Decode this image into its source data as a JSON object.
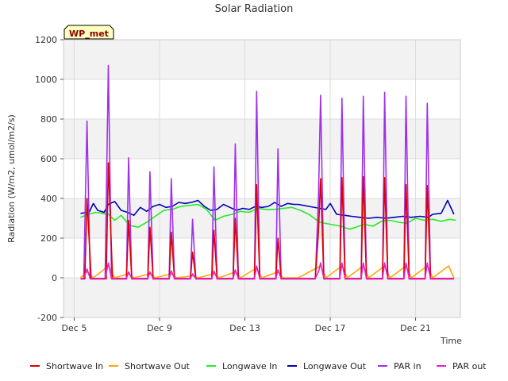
{
  "chart_data": {
    "type": "line",
    "title": "Solar Radiation",
    "xlabel": "Time",
    "ylabel": "Radiation (W/m2, umol/m2/s)",
    "badge": "WP_met",
    "xlim": [
      4.5,
      23.1
    ],
    "ylim": [
      -200,
      1200
    ],
    "yticks": [
      -200,
      0,
      200,
      400,
      600,
      800,
      1000,
      1200
    ],
    "xticks": [
      {
        "value": 5,
        "label": "Dec 5"
      },
      {
        "value": 9,
        "label": "Dec 9"
      },
      {
        "value": 13,
        "label": "Dec 13"
      },
      {
        "value": 17,
        "label": "Dec 17"
      },
      {
        "value": 21,
        "label": "Dec 21"
      }
    ],
    "bands": [
      [
        -200,
        0
      ],
      [
        200,
        400
      ],
      [
        600,
        800
      ],
      [
        1000,
        1200
      ]
    ],
    "colors": {
      "shortwave_in": "#dd0000",
      "shortwave_out": "#ffa500",
      "longwave_in": "#22ee22",
      "longwave_out": "#0000bb",
      "par_in": "#a030e8",
      "par_out": "#e61ed2",
      "band": "#f2f2f2",
      "grid": "#dcdcdc",
      "badge_fill": "#ffffc0"
    },
    "series": [
      {
        "name": "Shortwave In",
        "key": "shortwave_in",
        "x": [
          5.3,
          5.5,
          5.6,
          5.8,
          5.9,
          6.3,
          6.5,
          6.6,
          6.8,
          6.9,
          7.3,
          7.45,
          7.55,
          7.7,
          7.8,
          8.3,
          8.45,
          8.55,
          8.7,
          8.8,
          9.3,
          9.45,
          9.55,
          9.7,
          9.8,
          10.3,
          10.45,
          10.55,
          10.7,
          10.8,
          11.3,
          11.45,
          11.55,
          11.7,
          11.8,
          12.3,
          12.45,
          12.55,
          12.7,
          12.8,
          13.3,
          13.45,
          13.55,
          13.7,
          13.8,
          14.3,
          14.45,
          14.55,
          14.7,
          14.8,
          15.5,
          16.3,
          16.45,
          16.55,
          16.7,
          16.8,
          17.3,
          17.45,
          17.55,
          17.7,
          17.8,
          18.3,
          18.45,
          18.55,
          18.7,
          18.8,
          19.3,
          19.45,
          19.55,
          19.7,
          19.8,
          20.3,
          20.45,
          20.55,
          20.7,
          20.8,
          21.3,
          21.45,
          21.55,
          21.7,
          21.8,
          22.3,
          22.45,
          22.55,
          22.7,
          22.8
        ],
        "y": [
          -5,
          -5,
          400,
          -5,
          -5,
          -5,
          -5,
          580,
          -5,
          -5,
          -5,
          -5,
          290,
          -5,
          -5,
          -5,
          -5,
          255,
          -5,
          -5,
          -5,
          -5,
          230,
          -5,
          -5,
          -5,
          -5,
          130,
          -5,
          -5,
          -5,
          -5,
          240,
          -5,
          -5,
          -5,
          -5,
          300,
          -5,
          -5,
          -5,
          -5,
          470,
          -5,
          -5,
          -5,
          -5,
          200,
          -5,
          -5,
          -5,
          -5,
          230,
          500,
          -5,
          -5,
          -5,
          -5,
          505,
          -5,
          -5,
          -5,
          -5,
          510,
          -5,
          -5,
          -5,
          -5,
          505,
          -5,
          -5,
          -5,
          -5,
          470,
          -5,
          -5,
          -5,
          -5,
          465,
          -5,
          -5,
          -5,
          -5,
          -5,
          -5,
          -5
        ]
      },
      {
        "name": "Shortwave Out",
        "key": "shortwave_out",
        "x": [
          5.3,
          5.6,
          5.9,
          6.6,
          6.9,
          7.55,
          7.8,
          8.55,
          8.8,
          9.55,
          9.8,
          10.55,
          10.8,
          11.55,
          11.8,
          12.55,
          12.8,
          13.55,
          13.8,
          14.55,
          14.8,
          15.5,
          16.55,
          16.8,
          17.55,
          17.8,
          18.55,
          18.8,
          19.55,
          19.8,
          20.55,
          20.8,
          21.55,
          21.8,
          22.55,
          22.8
        ],
        "y": [
          0,
          30,
          0,
          60,
          0,
          20,
          0,
          20,
          0,
          20,
          0,
          10,
          0,
          20,
          0,
          30,
          0,
          50,
          0,
          30,
          0,
          0,
          60,
          0,
          60,
          0,
          60,
          0,
          60,
          0,
          60,
          0,
          60,
          0,
          60,
          0
        ]
      },
      {
        "name": "Longwave In",
        "key": "longwave_in",
        "x": [
          5.3,
          5.7,
          6.0,
          6.3,
          6.6,
          6.9,
          7.2,
          7.6,
          8.0,
          8.4,
          8.8,
          9.2,
          9.6,
          10.0,
          10.4,
          10.8,
          11.2,
          11.6,
          12.0,
          12.4,
          12.8,
          13.2,
          13.6,
          14.0,
          14.4,
          14.8,
          15.2,
          15.6,
          16.0,
          16.5,
          17.0,
          17.5,
          17.9,
          18.2,
          18.6,
          19.0,
          19.4,
          19.8,
          20.2,
          20.6,
          21.0,
          21.4,
          21.8,
          22.2,
          22.6,
          22.9
        ],
        "y": [
          305,
          320,
          330,
          325,
          320,
          290,
          315,
          265,
          255,
          280,
          310,
          340,
          345,
          360,
          365,
          370,
          345,
          290,
          310,
          320,
          335,
          330,
          350,
          345,
          345,
          350,
          355,
          340,
          320,
          280,
          270,
          260,
          245,
          255,
          270,
          260,
          285,
          290,
          280,
          275,
          300,
          290,
          295,
          285,
          295,
          290
        ]
      },
      {
        "name": "Longwave Out",
        "key": "longwave_out",
        "x": [
          5.3,
          5.7,
          5.9,
          6.1,
          6.4,
          6.6,
          6.9,
          7.2,
          7.5,
          7.8,
          8.1,
          8.4,
          8.7,
          9.0,
          9.3,
          9.6,
          9.9,
          10.2,
          10.5,
          10.8,
          11.1,
          11.4,
          11.7,
          12.0,
          12.3,
          12.6,
          12.9,
          13.2,
          13.5,
          13.8,
          14.1,
          14.4,
          14.7,
          15.0,
          15.3,
          15.5,
          16.0,
          16.5,
          16.8,
          17.0,
          17.3,
          17.7,
          18.0,
          18.4,
          18.8,
          19.2,
          19.6,
          20.0,
          20.4,
          20.8,
          21.2,
          21.6,
          21.8,
          22.2,
          22.5,
          22.8
        ],
        "y": [
          325,
          330,
          375,
          340,
          330,
          370,
          385,
          340,
          330,
          315,
          355,
          335,
          360,
          370,
          355,
          360,
          380,
          375,
          380,
          390,
          360,
          340,
          345,
          370,
          355,
          340,
          350,
          345,
          360,
          355,
          360,
          380,
          360,
          375,
          370,
          370,
          360,
          350,
          345,
          375,
          320,
          315,
          310,
          305,
          300,
          305,
          300,
          305,
          310,
          305,
          310,
          305,
          320,
          325,
          390,
          320
        ]
      },
      {
        "name": "PAR in",
        "key": "par_in",
        "x": [
          5.3,
          5.45,
          5.6,
          5.75,
          5.9,
          6.3,
          6.45,
          6.6,
          6.75,
          6.9,
          7.3,
          7.45,
          7.55,
          7.7,
          7.8,
          8.3,
          8.45,
          8.55,
          8.7,
          8.8,
          9.3,
          9.45,
          9.55,
          9.7,
          9.8,
          10.3,
          10.45,
          10.55,
          10.7,
          10.8,
          11.3,
          11.45,
          11.55,
          11.7,
          11.8,
          12.3,
          12.45,
          12.55,
          12.7,
          12.8,
          13.3,
          13.45,
          13.55,
          13.7,
          13.8,
          14.3,
          14.45,
          14.55,
          14.7,
          14.8,
          15.5,
          16.3,
          16.45,
          16.55,
          16.7,
          16.8,
          17.3,
          17.45,
          17.55,
          17.7,
          17.8,
          18.3,
          18.45,
          18.55,
          18.7,
          18.8,
          19.3,
          19.45,
          19.55,
          19.7,
          19.8,
          20.3,
          20.45,
          20.55,
          20.7,
          20.8,
          21.3,
          21.45,
          21.55,
          21.7,
          21.8,
          22.3,
          22.45,
          22.55,
          22.7,
          22.8
        ],
        "y": [
          -5,
          -5,
          790,
          -5,
          -5,
          -5,
          -5,
          1070,
          -5,
          -5,
          -5,
          -5,
          605,
          -5,
          -5,
          -5,
          -5,
          535,
          -5,
          -5,
          -5,
          -5,
          500,
          -5,
          -5,
          -5,
          -5,
          295,
          -5,
          -5,
          -5,
          -5,
          560,
          -5,
          -5,
          -5,
          -5,
          675,
          -5,
          -5,
          -5,
          -5,
          940,
          -5,
          -5,
          -5,
          -5,
          650,
          -5,
          -5,
          -5,
          -5,
          400,
          920,
          -5,
          -5,
          -5,
          -5,
          905,
          -5,
          -5,
          -5,
          -5,
          915,
          -5,
          -5,
          -5,
          -5,
          935,
          -5,
          -5,
          -5,
          -5,
          915,
          -5,
          -5,
          -5,
          -5,
          880,
          -5,
          -5,
          -5,
          -5,
          -5,
          -5,
          -5
        ]
      },
      {
        "name": "PAR out",
        "key": "par_out",
        "x": [
          5.3,
          5.45,
          5.6,
          5.75,
          5.9,
          6.3,
          6.45,
          6.6,
          6.75,
          6.9,
          7.3,
          7.45,
          7.55,
          7.7,
          7.8,
          8.3,
          8.45,
          8.55,
          8.7,
          8.8,
          9.3,
          9.45,
          9.55,
          9.7,
          9.8,
          10.3,
          10.45,
          10.55,
          10.7,
          10.8,
          11.3,
          11.45,
          11.55,
          11.7,
          11.8,
          12.3,
          12.45,
          12.55,
          12.7,
          12.8,
          13.3,
          13.45,
          13.55,
          13.7,
          13.8,
          14.3,
          14.45,
          14.55,
          14.7,
          14.8,
          15.5,
          16.3,
          16.45,
          16.55,
          16.7,
          16.8,
          17.3,
          17.45,
          17.55,
          17.7,
          17.8,
          18.3,
          18.45,
          18.55,
          18.7,
          18.8,
          19.3,
          19.45,
          19.55,
          19.7,
          19.8,
          20.3,
          20.45,
          20.55,
          20.7,
          20.8,
          21.3,
          21.45,
          21.55,
          21.7,
          21.8,
          22.3,
          22.45,
          22.55,
          22.7,
          22.8
        ],
        "y": [
          -3,
          -3,
          45,
          -3,
          -3,
          -3,
          -3,
          75,
          -3,
          -3,
          -3,
          -3,
          30,
          -3,
          -3,
          -3,
          -3,
          30,
          -3,
          -3,
          -3,
          -3,
          35,
          -3,
          -3,
          -3,
          -3,
          20,
          -3,
          -3,
          -3,
          -3,
          35,
          -3,
          -3,
          -3,
          -3,
          40,
          -3,
          -3,
          -3,
          -3,
          60,
          -3,
          -3,
          -3,
          -3,
          40,
          -3,
          -3,
          -3,
          -3,
          30,
          75,
          -3,
          -3,
          -3,
          -3,
          75,
          -3,
          -3,
          -3,
          -3,
          75,
          -3,
          -3,
          -3,
          -3,
          75,
          -3,
          -3,
          -3,
          -3,
          75,
          -3,
          -3,
          -3,
          -3,
          75,
          -3,
          -3,
          -3,
          -3,
          -3,
          -3,
          -3
        ]
      }
    ],
    "draw_order": [
      "longwave_in",
      "longwave_out",
      "shortwave_out",
      "par_in",
      "shortwave_in",
      "par_out"
    ],
    "legend": [
      {
        "label": "Shortwave In",
        "key": "shortwave_in"
      },
      {
        "label": "Shortwave Out",
        "key": "shortwave_out"
      },
      {
        "label": "Longwave In",
        "key": "longwave_in"
      },
      {
        "label": "Longwave Out",
        "key": "longwave_out"
      },
      {
        "label": "PAR in",
        "key": "par_in"
      },
      {
        "label": "PAR out",
        "key": "par_out"
      }
    ]
  }
}
